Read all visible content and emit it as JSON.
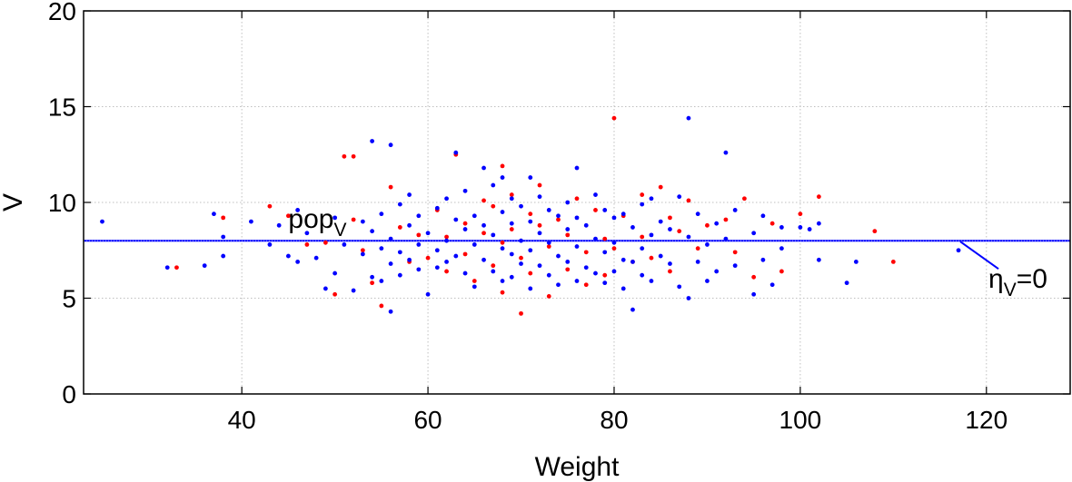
{
  "chart_data": {
    "type": "scatter",
    "xlabel": "Weight",
    "ylabel": "V",
    "xlim": [
      23,
      129
    ],
    "ylim": [
      0,
      20
    ],
    "xticks": [
      "40",
      "60",
      "80",
      "100",
      "120"
    ],
    "yticks": [
      "0",
      "5",
      "10",
      "15",
      "20"
    ],
    "grid": true,
    "colors": {
      "series_a": "#ff0000",
      "series_b": "#0000ff",
      "reference_line": "#0000ff"
    },
    "reference_line": {
      "y": 8,
      "label_main": "pop",
      "label_sub": "V"
    },
    "annotation": {
      "label_main": "η",
      "label_sub": "V",
      "label_suffix": "=0",
      "points_to": [
        117,
        8
      ]
    },
    "series": [
      {
        "color": "#ff0000",
        "points": [
          [
            33,
            6.6
          ],
          [
            38,
            9.2
          ],
          [
            43,
            9.8
          ],
          [
            45,
            9.3
          ],
          [
            47,
            7.8
          ],
          [
            49,
            7.9
          ],
          [
            50,
            5.2
          ],
          [
            51,
            12.4
          ],
          [
            52,
            12.4
          ],
          [
            52,
            9.1
          ],
          [
            53,
            7.5
          ],
          [
            54,
            5.8
          ],
          [
            55,
            4.6
          ],
          [
            56,
            10.8
          ],
          [
            57,
            8.7
          ],
          [
            58,
            6.9
          ],
          [
            59,
            8.3
          ],
          [
            60,
            7.1
          ],
          [
            61,
            9.6
          ],
          [
            62,
            8.2
          ],
          [
            62,
            6.4
          ],
          [
            63,
            12.5
          ],
          [
            64,
            8.9
          ],
          [
            64,
            7.3
          ],
          [
            65,
            5.9
          ],
          [
            66,
            10.1
          ],
          [
            66,
            8.4
          ],
          [
            67,
            9.8
          ],
          [
            67,
            6.7
          ],
          [
            68,
            11.9
          ],
          [
            68,
            7.9
          ],
          [
            68,
            5.3
          ],
          [
            69,
            10.4
          ],
          [
            69,
            8.6
          ],
          [
            70,
            7.1
          ],
          [
            70,
            4.2
          ],
          [
            71,
            9.4
          ],
          [
            71,
            6.3
          ],
          [
            72,
            8.8
          ],
          [
            72,
            10.9
          ],
          [
            73,
            5.1
          ],
          [
            73,
            7.7
          ],
          [
            74,
            9.1
          ],
          [
            75,
            6.5
          ],
          [
            75,
            8.3
          ],
          [
            76,
            10.2
          ],
          [
            77,
            7.4
          ],
          [
            77,
            5.7
          ],
          [
            78,
            9.6
          ],
          [
            79,
            8.1
          ],
          [
            79,
            6.2
          ],
          [
            80,
            14.4
          ],
          [
            80,
            7.6
          ],
          [
            81,
            9.3
          ],
          [
            82,
            6.9
          ],
          [
            83,
            10.4
          ],
          [
            83,
            8.2
          ],
          [
            84,
            7.1
          ],
          [
            85,
            10.8
          ],
          [
            86,
            9.2
          ],
          [
            86,
            6.4
          ],
          [
            87,
            8.5
          ],
          [
            88,
            10.1
          ],
          [
            89,
            7.6
          ],
          [
            90,
            8.8
          ],
          [
            92,
            9.1
          ],
          [
            93,
            7.4
          ],
          [
            94,
            10.2
          ],
          [
            95,
            6.1
          ],
          [
            97,
            8.9
          ],
          [
            98,
            6.4
          ],
          [
            100,
            9.4
          ],
          [
            102,
            10.3
          ],
          [
            108,
            8.5
          ],
          [
            110,
            6.9
          ]
        ]
      },
      {
        "color": "#0000ff",
        "points": [
          [
            25,
            9.0
          ],
          [
            32,
            6.6
          ],
          [
            36,
            6.7
          ],
          [
            37,
            9.4
          ],
          [
            38,
            8.2
          ],
          [
            38,
            7.2
          ],
          [
            41,
            9.0
          ],
          [
            43,
            7.8
          ],
          [
            44,
            8.8
          ],
          [
            45,
            7.2
          ],
          [
            46,
            9.6
          ],
          [
            46,
            6.9
          ],
          [
            47,
            8.4
          ],
          [
            48,
            7.1
          ],
          [
            49,
            5.5
          ],
          [
            50,
            9.2
          ],
          [
            50,
            6.3
          ],
          [
            51,
            7.8
          ],
          [
            52,
            5.4
          ],
          [
            53,
            9.0
          ],
          [
            53,
            7.3
          ],
          [
            54,
            8.5
          ],
          [
            54,
            6.1
          ],
          [
            54,
            13.2
          ],
          [
            55,
            9.4
          ],
          [
            55,
            7.6
          ],
          [
            55,
            5.9
          ],
          [
            56,
            13.0
          ],
          [
            56,
            8.1
          ],
          [
            56,
            6.8
          ],
          [
            56,
            4.3
          ],
          [
            57,
            9.9
          ],
          [
            57,
            7.4
          ],
          [
            57,
            6.2
          ],
          [
            58,
            8.8
          ],
          [
            58,
            7.0
          ],
          [
            58,
            10.4
          ],
          [
            59,
            9.3
          ],
          [
            59,
            7.8
          ],
          [
            59,
            6.5
          ],
          [
            60,
            8.4
          ],
          [
            60,
            5.2
          ],
          [
            61,
            9.7
          ],
          [
            61,
            7.5
          ],
          [
            61,
            6.6
          ],
          [
            62,
            10.2
          ],
          [
            62,
            8.0
          ],
          [
            62,
            6.9
          ],
          [
            63,
            12.6
          ],
          [
            63,
            9.1
          ],
          [
            63,
            7.2
          ],
          [
            64,
            8.6
          ],
          [
            64,
            6.3
          ],
          [
            64,
            10.6
          ],
          [
            65,
            9.3
          ],
          [
            65,
            7.8
          ],
          [
            65,
            5.6
          ],
          [
            66,
            11.8
          ],
          [
            66,
            8.8
          ],
          [
            66,
            7.0
          ],
          [
            67,
            10.9
          ],
          [
            67,
            8.3
          ],
          [
            67,
            6.4
          ],
          [
            68,
            11.3
          ],
          [
            68,
            9.5
          ],
          [
            68,
            7.6
          ],
          [
            68,
            5.9
          ],
          [
            69,
            10.2
          ],
          [
            69,
            8.9
          ],
          [
            69,
            7.3
          ],
          [
            69,
            6.1
          ],
          [
            70,
            9.8
          ],
          [
            70,
            8.0
          ],
          [
            70,
            6.8
          ],
          [
            71,
            11.3
          ],
          [
            71,
            9.0
          ],
          [
            71,
            7.5
          ],
          [
            71,
            5.5
          ],
          [
            72,
            10.3
          ],
          [
            72,
            8.4
          ],
          [
            72,
            6.7
          ],
          [
            73,
            9.6
          ],
          [
            73,
            7.9
          ],
          [
            73,
            6.2
          ],
          [
            74,
            9.3
          ],
          [
            74,
            7.2
          ],
          [
            74,
            5.7
          ],
          [
            75,
            10.0
          ],
          [
            75,
            8.6
          ],
          [
            75,
            6.9
          ],
          [
            76,
            11.8
          ],
          [
            76,
            9.2
          ],
          [
            76,
            7.7
          ],
          [
            76,
            5.9
          ],
          [
            77,
            8.8
          ],
          [
            77,
            6.6
          ],
          [
            78,
            10.4
          ],
          [
            78,
            8.1
          ],
          [
            78,
            6.3
          ],
          [
            79,
            9.6
          ],
          [
            79,
            7.4
          ],
          [
            79,
            5.8
          ],
          [
            80,
            9.2
          ],
          [
            80,
            7.9
          ],
          [
            80,
            6.4
          ],
          [
            81,
            9.4
          ],
          [
            81,
            7.0
          ],
          [
            81,
            5.5
          ],
          [
            82,
            8.7
          ],
          [
            82,
            6.9
          ],
          [
            82,
            4.4
          ],
          [
            83,
            9.9
          ],
          [
            83,
            7.6
          ],
          [
            83,
            6.2
          ],
          [
            84,
            10.2
          ],
          [
            84,
            8.3
          ],
          [
            84,
            5.9
          ],
          [
            85,
            9.0
          ],
          [
            85,
            7.2
          ],
          [
            86,
            8.6
          ],
          [
            86,
            6.8
          ],
          [
            87,
            10.3
          ],
          [
            87,
            5.6
          ],
          [
            88,
            14.4
          ],
          [
            88,
            8.2
          ],
          [
            88,
            5.0
          ],
          [
            89,
            9.4
          ],
          [
            89,
            6.9
          ],
          [
            90,
            7.8
          ],
          [
            90,
            5.9
          ],
          [
            91,
            8.9
          ],
          [
            91,
            6.4
          ],
          [
            92,
            12.6
          ],
          [
            92,
            8.1
          ],
          [
            93,
            9.6
          ],
          [
            93,
            6.7
          ],
          [
            95,
            8.4
          ],
          [
            95,
            5.2
          ],
          [
            96,
            9.3
          ],
          [
            96,
            7.0
          ],
          [
            97,
            5.7
          ],
          [
            98,
            8.7
          ],
          [
            98,
            7.6
          ],
          [
            100,
            8.7
          ],
          [
            101,
            8.6
          ],
          [
            102,
            8.9
          ],
          [
            102,
            7.0
          ],
          [
            105,
            5.8
          ],
          [
            106,
            6.9
          ],
          [
            117,
            7.5
          ]
        ]
      }
    ]
  }
}
